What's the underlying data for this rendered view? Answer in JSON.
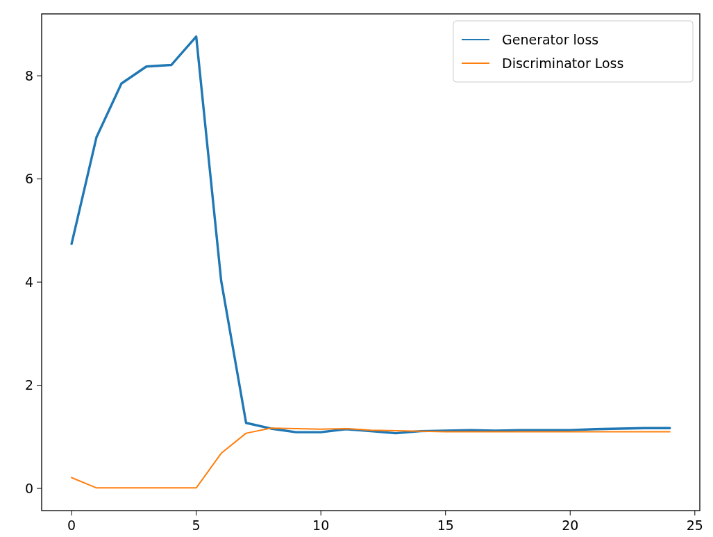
{
  "chart_data": {
    "type": "line",
    "x": [
      0,
      1,
      2,
      3,
      4,
      5,
      6,
      7,
      8,
      9,
      10,
      11,
      12,
      13,
      14,
      15,
      16,
      17,
      18,
      19,
      20,
      21,
      22,
      23,
      24
    ],
    "series": [
      {
        "name": "Generator loss",
        "color": "#1f77b4",
        "values": [
          4.74,
          6.81,
          7.85,
          8.18,
          8.21,
          8.76,
          4.03,
          1.27,
          1.16,
          1.09,
          1.09,
          1.15,
          1.11,
          1.07,
          1.11,
          1.12,
          1.13,
          1.12,
          1.13,
          1.13,
          1.13,
          1.15,
          1.16,
          1.17,
          1.17
        ]
      },
      {
        "name": "Discriminator Loss",
        "color": "#ff7f0e",
        "values": [
          0.21,
          0.01,
          0.01,
          0.01,
          0.01,
          0.01,
          0.68,
          1.07,
          1.17,
          1.16,
          1.15,
          1.16,
          1.13,
          1.12,
          1.11,
          1.1,
          1.1,
          1.1,
          1.1,
          1.1,
          1.1,
          1.1,
          1.1,
          1.1,
          1.1
        ]
      }
    ],
    "xlim": [
      -1.2,
      25.2
    ],
    "ylim": [
      -0.43,
      9.2
    ],
    "xticks": [
      0,
      5,
      10,
      15,
      20,
      25
    ],
    "yticks": [
      0,
      2,
      4,
      6,
      8
    ],
    "legend": "top right",
    "grid": false,
    "line_style": "solid",
    "marker": "none"
  }
}
